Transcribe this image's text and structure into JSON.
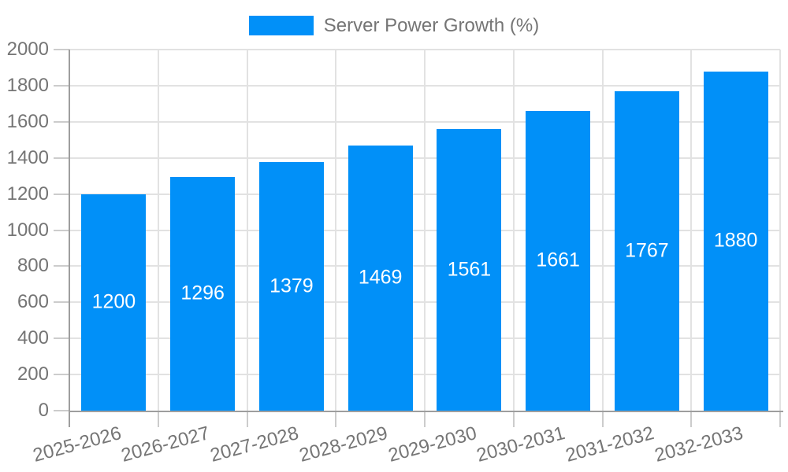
{
  "chart_data": {
    "type": "bar",
    "title": "",
    "legend_label": "Server Power Growth (%)",
    "legend_position": "top-center",
    "categories": [
      "2025-2026",
      "2026-2027",
      "2027-2028",
      "2028-2029",
      "2029-2030",
      "2030-2031",
      "2031-2032",
      "2032-2033"
    ],
    "values": [
      1200,
      1296,
      1379,
      1469,
      1561,
      1661,
      1767,
      1880
    ],
    "value_labels": [
      "1200",
      "1296",
      "1379",
      "1469",
      "1561",
      "1661",
      "1767",
      "1880"
    ],
    "xlabel": "",
    "ylabel": "",
    "ylim": [
      0,
      2000
    ],
    "ytick_step": 200,
    "ytick_labels": [
      "0",
      "200",
      "400",
      "600",
      "800",
      "1000",
      "1200",
      "1400",
      "1600",
      "1800",
      "2000"
    ],
    "grid": true,
    "x_label_rotation_deg": -15,
    "colors": {
      "bar": "#0190f8",
      "grid": "#e2e2e2",
      "axis": "#9e9e9e",
      "tick": "#cccccc",
      "label_text": "#757575",
      "bar_value_text": "#ffffff",
      "background": "#ffffff"
    }
  }
}
